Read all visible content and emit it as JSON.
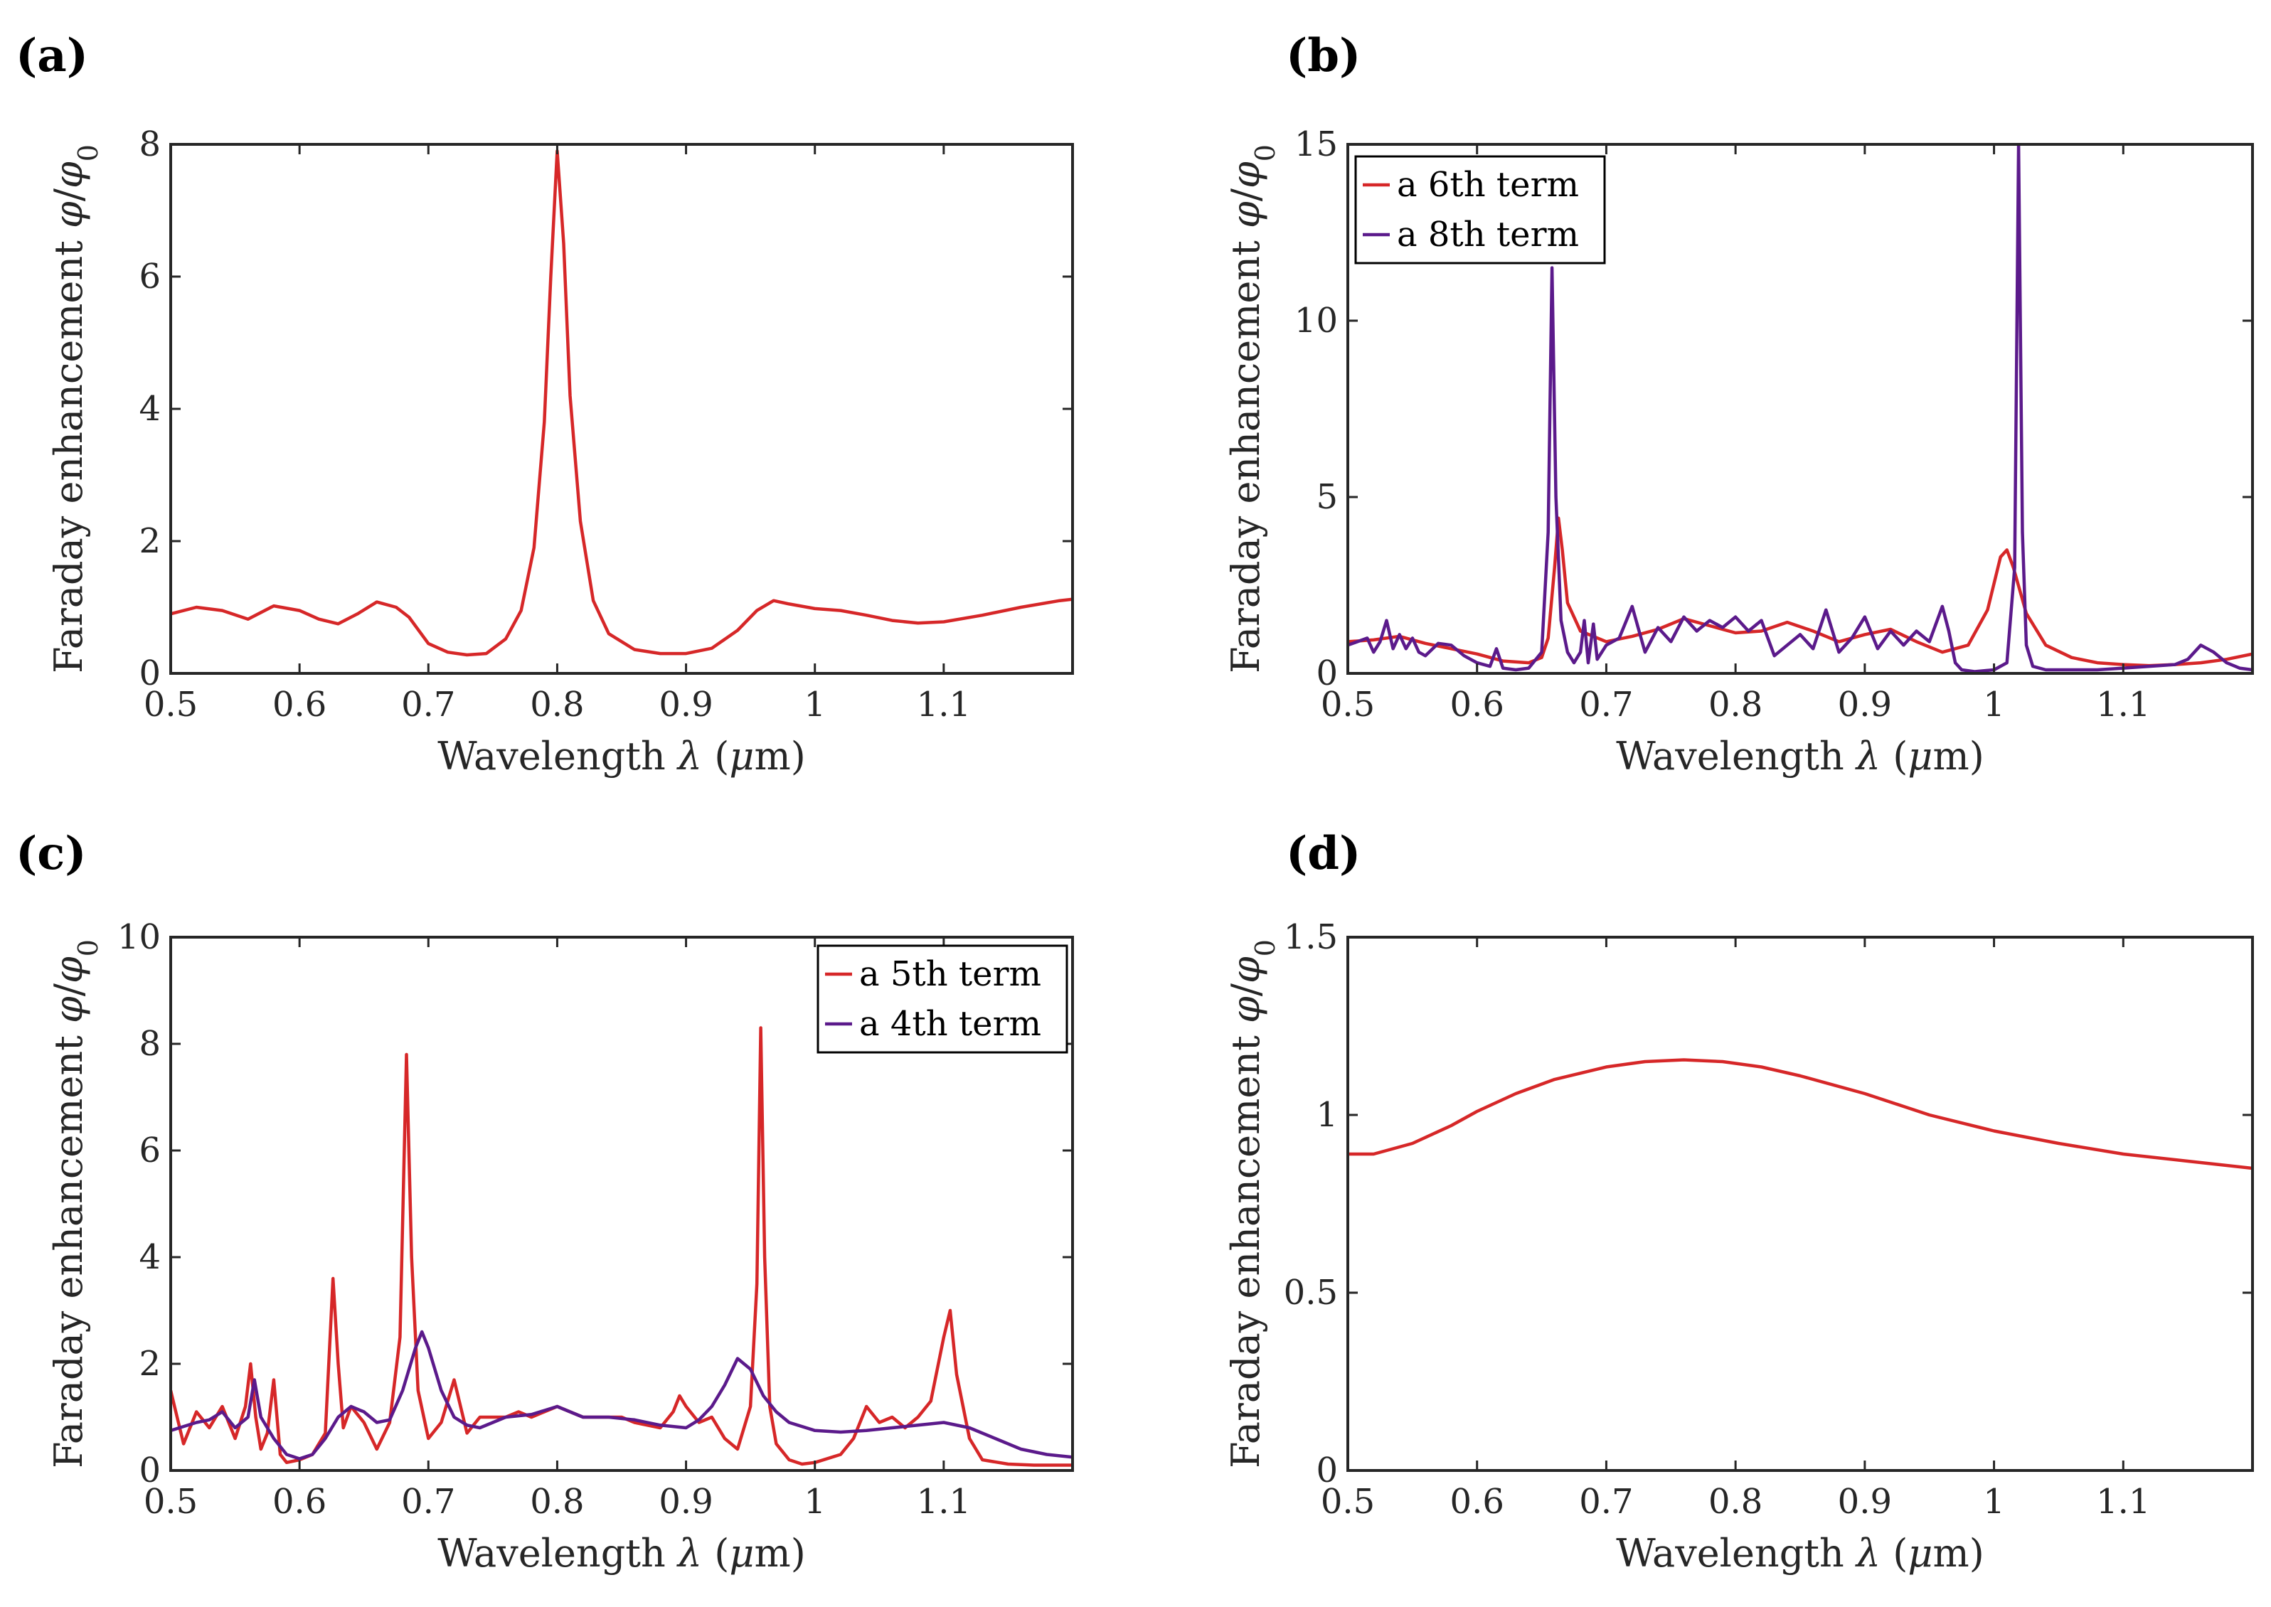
{
  "chart_data": [
    {
      "id": "a",
      "panel_label": "(a)",
      "type": "line",
      "xlabel": "Wavelength λ (μm)",
      "ylabel": "Faraday enhancement φ/φ0",
      "xlim": [
        0.5,
        1.2
      ],
      "ylim": [
        0,
        8
      ],
      "xticks": [
        0.5,
        0.6,
        0.7,
        0.8,
        0.9,
        1,
        1.1
      ],
      "xtick_labels": [
        "0.5",
        "0.6",
        "0.7",
        "0.8",
        "0.9",
        "1",
        "1.1"
      ],
      "yticks": [
        0,
        2,
        4,
        6,
        8
      ],
      "ytick_labels": [
        "0",
        "2",
        "4",
        "6",
        "8"
      ],
      "legend": [],
      "series": [
        {
          "name": "",
          "color": "#d62728",
          "x": [
            0.5,
            0.52,
            0.54,
            0.56,
            0.58,
            0.6,
            0.615,
            0.63,
            0.645,
            0.66,
            0.675,
            0.685,
            0.7,
            0.715,
            0.73,
            0.745,
            0.76,
            0.772,
            0.782,
            0.79,
            0.795,
            0.8,
            0.805,
            0.81,
            0.818,
            0.828,
            0.84,
            0.86,
            0.88,
            0.9,
            0.92,
            0.94,
            0.955,
            0.968,
            0.98,
            1.0,
            1.02,
            1.04,
            1.06,
            1.08,
            1.1,
            1.13,
            1.16,
            1.19,
            1.2
          ],
          "y": [
            0.9,
            1.0,
            0.95,
            0.82,
            1.02,
            0.95,
            0.82,
            0.75,
            0.9,
            1.08,
            1.0,
            0.85,
            0.45,
            0.32,
            0.28,
            0.3,
            0.52,
            0.95,
            1.9,
            3.8,
            6.0,
            7.9,
            6.5,
            4.2,
            2.3,
            1.1,
            0.6,
            0.36,
            0.3,
            0.3,
            0.38,
            0.65,
            0.95,
            1.1,
            1.05,
            0.98,
            0.95,
            0.88,
            0.8,
            0.76,
            0.78,
            0.88,
            1.0,
            1.1,
            1.12
          ]
        }
      ]
    },
    {
      "id": "b",
      "panel_label": "(b)",
      "type": "line",
      "xlabel": "Wavelength λ (μm)",
      "ylabel": "Faraday enhancement φ/φ0",
      "xlim": [
        0.5,
        1.2
      ],
      "ylim": [
        0,
        15
      ],
      "xticks": [
        0.5,
        0.6,
        0.7,
        0.8,
        0.9,
        1,
        1.1
      ],
      "xtick_labels": [
        "0.5",
        "0.6",
        "0.7",
        "0.8",
        "0.9",
        "1",
        "1.1"
      ],
      "yticks": [
        0,
        5,
        10,
        15
      ],
      "ytick_labels": [
        "0",
        "5",
        "10",
        "15"
      ],
      "legend": [
        "a 6th term",
        "a 8th term"
      ],
      "series": [
        {
          "name": "a 6th term",
          "color": "#d62728",
          "x": [
            0.5,
            0.52,
            0.54,
            0.56,
            0.58,
            0.6,
            0.62,
            0.64,
            0.65,
            0.655,
            0.66,
            0.663,
            0.666,
            0.67,
            0.68,
            0.7,
            0.72,
            0.74,
            0.76,
            0.78,
            0.8,
            0.82,
            0.84,
            0.86,
            0.88,
            0.9,
            0.92,
            0.94,
            0.96,
            0.98,
            0.995,
            1.005,
            1.01,
            1.015,
            1.025,
            1.04,
            1.06,
            1.08,
            1.1,
            1.12,
            1.14,
            1.16,
            1.18,
            1.2
          ],
          "y": [
            0.9,
            0.95,
            1.05,
            0.85,
            0.7,
            0.55,
            0.35,
            0.3,
            0.45,
            1.0,
            3.0,
            4.4,
            3.5,
            2.0,
            1.2,
            0.9,
            1.05,
            1.25,
            1.55,
            1.35,
            1.15,
            1.2,
            1.45,
            1.2,
            0.9,
            1.1,
            1.25,
            0.9,
            0.6,
            0.8,
            1.8,
            3.3,
            3.5,
            3.0,
            1.7,
            0.8,
            0.45,
            0.3,
            0.25,
            0.22,
            0.25,
            0.3,
            0.4,
            0.55
          ]
        },
        {
          "name": "a 8th term",
          "color": "#5b1a8b",
          "x": [
            0.5,
            0.515,
            0.52,
            0.525,
            0.53,
            0.535,
            0.54,
            0.545,
            0.55,
            0.555,
            0.56,
            0.57,
            0.58,
            0.59,
            0.6,
            0.61,
            0.615,
            0.62,
            0.63,
            0.64,
            0.65,
            0.655,
            0.658,
            0.661,
            0.665,
            0.67,
            0.675,
            0.68,
            0.683,
            0.686,
            0.69,
            0.693,
            0.7,
            0.71,
            0.72,
            0.73,
            0.74,
            0.75,
            0.76,
            0.77,
            0.78,
            0.79,
            0.8,
            0.81,
            0.82,
            0.83,
            0.84,
            0.85,
            0.86,
            0.87,
            0.88,
            0.89,
            0.9,
            0.91,
            0.92,
            0.93,
            0.94,
            0.95,
            0.96,
            0.965,
            0.97,
            0.975,
            0.985,
            1.0,
            1.01,
            1.016,
            1.019,
            1.022,
            1.025,
            1.03,
            1.04,
            1.06,
            1.08,
            1.1,
            1.12,
            1.14,
            1.15,
            1.16,
            1.17,
            1.18,
            1.19,
            1.2
          ],
          "y": [
            0.8,
            1.0,
            0.6,
            0.9,
            1.5,
            0.7,
            1.1,
            0.7,
            1.0,
            0.6,
            0.5,
            0.85,
            0.8,
            0.5,
            0.3,
            0.2,
            0.7,
            0.15,
            0.1,
            0.15,
            0.6,
            4.0,
            11.5,
            5.0,
            1.5,
            0.6,
            0.3,
            0.6,
            1.5,
            0.3,
            1.4,
            0.4,
            0.8,
            1.0,
            1.9,
            0.6,
            1.3,
            0.9,
            1.6,
            1.2,
            1.5,
            1.3,
            1.6,
            1.2,
            1.5,
            0.5,
            0.8,
            1.1,
            0.7,
            1.8,
            0.6,
            1.0,
            1.6,
            0.7,
            1.2,
            0.8,
            1.2,
            0.9,
            1.9,
            1.2,
            0.3,
            0.1,
            0.05,
            0.1,
            0.3,
            3.0,
            15.0,
            4.0,
            0.8,
            0.2,
            0.1,
            0.1,
            0.1,
            0.15,
            0.2,
            0.25,
            0.4,
            0.8,
            0.6,
            0.3,
            0.15,
            0.1
          ]
        }
      ]
    },
    {
      "id": "c",
      "panel_label": "(c)",
      "type": "line",
      "xlabel": "Wavelength λ (μm)",
      "ylabel": "Faraday enhancement φ/φ0",
      "xlim": [
        0.5,
        1.2
      ],
      "ylim": [
        0,
        10
      ],
      "xticks": [
        0.5,
        0.6,
        0.7,
        0.8,
        0.9,
        1,
        1.1
      ],
      "xtick_labels": [
        "0.5",
        "0.6",
        "0.7",
        "0.8",
        "0.9",
        "1",
        "1.1"
      ],
      "yticks": [
        0,
        2,
        4,
        6,
        8,
        10
      ],
      "ytick_labels": [
        "0",
        "2",
        "4",
        "6",
        "8",
        "10"
      ],
      "legend": [
        "a 5th term",
        "a 4th term"
      ],
      "series": [
        {
          "name": "a 5th term",
          "color": "#d62728",
          "x": [
            0.5,
            0.503,
            0.51,
            0.52,
            0.53,
            0.54,
            0.55,
            0.558,
            0.562,
            0.566,
            0.57,
            0.575,
            0.58,
            0.585,
            0.59,
            0.6,
            0.61,
            0.62,
            0.626,
            0.63,
            0.634,
            0.64,
            0.65,
            0.66,
            0.67,
            0.678,
            0.683,
            0.687,
            0.692,
            0.7,
            0.71,
            0.72,
            0.73,
            0.74,
            0.75,
            0.76,
            0.77,
            0.78,
            0.79,
            0.8,
            0.81,
            0.82,
            0.83,
            0.84,
            0.85,
            0.86,
            0.87,
            0.88,
            0.89,
            0.895,
            0.9,
            0.91,
            0.92,
            0.93,
            0.94,
            0.95,
            0.955,
            0.958,
            0.961,
            0.965,
            0.97,
            0.98,
            0.99,
            1.0,
            1.02,
            1.03,
            1.04,
            1.05,
            1.06,
            1.07,
            1.08,
            1.09,
            1.1,
            1.105,
            1.11,
            1.12,
            1.13,
            1.15,
            1.17,
            1.2
          ],
          "y": [
            1.5,
            1.2,
            0.5,
            1.1,
            0.8,
            1.2,
            0.6,
            1.2,
            2.0,
            1.0,
            0.4,
            0.7,
            1.7,
            0.3,
            0.15,
            0.2,
            0.3,
            0.7,
            3.6,
            2.0,
            0.8,
            1.2,
            0.9,
            0.4,
            0.9,
            2.5,
            7.8,
            4.0,
            1.5,
            0.6,
            0.9,
            1.7,
            0.7,
            1.0,
            1.0,
            1.0,
            1.1,
            1.0,
            1.1,
            1.2,
            1.1,
            1.0,
            1.0,
            1.0,
            1.0,
            0.9,
            0.85,
            0.8,
            1.1,
            1.4,
            1.2,
            0.9,
            1.0,
            0.6,
            0.4,
            1.2,
            3.5,
            8.3,
            4.0,
            1.2,
            0.5,
            0.2,
            0.12,
            0.15,
            0.3,
            0.6,
            1.2,
            0.9,
            1.0,
            0.8,
            1.0,
            1.3,
            2.5,
            3.0,
            1.8,
            0.6,
            0.2,
            0.12,
            0.1,
            0.1
          ]
        },
        {
          "name": "a 4th term",
          "color": "#5b1a8b",
          "x": [
            0.5,
            0.52,
            0.53,
            0.54,
            0.55,
            0.56,
            0.565,
            0.57,
            0.58,
            0.59,
            0.6,
            0.61,
            0.62,
            0.63,
            0.64,
            0.65,
            0.66,
            0.67,
            0.68,
            0.69,
            0.695,
            0.7,
            0.71,
            0.72,
            0.73,
            0.74,
            0.75,
            0.76,
            0.78,
            0.8,
            0.82,
            0.84,
            0.86,
            0.88,
            0.9,
            0.91,
            0.92,
            0.93,
            0.94,
            0.95,
            0.96,
            0.97,
            0.98,
            1.0,
            1.02,
            1.04,
            1.06,
            1.08,
            1.1,
            1.12,
            1.14,
            1.16,
            1.18,
            1.2
          ],
          "y": [
            0.75,
            0.9,
            0.95,
            1.1,
            0.8,
            1.0,
            1.7,
            1.0,
            0.6,
            0.3,
            0.22,
            0.3,
            0.6,
            1.0,
            1.2,
            1.1,
            0.9,
            0.95,
            1.5,
            2.3,
            2.6,
            2.3,
            1.5,
            1.0,
            0.85,
            0.8,
            0.9,
            1.0,
            1.05,
            1.2,
            1.0,
            1.0,
            0.95,
            0.85,
            0.8,
            0.95,
            1.2,
            1.6,
            2.1,
            1.9,
            1.4,
            1.1,
            0.9,
            0.75,
            0.72,
            0.75,
            0.8,
            0.85,
            0.9,
            0.8,
            0.6,
            0.4,
            0.3,
            0.25
          ]
        }
      ]
    },
    {
      "id": "d",
      "panel_label": "(d)",
      "type": "line",
      "xlabel": "Wavelength λ (μm)",
      "ylabel": "Faraday enhancement φ/φ0",
      "xlim": [
        0.5,
        1.2
      ],
      "ylim": [
        0,
        1.5
      ],
      "xticks": [
        0.5,
        0.6,
        0.7,
        0.8,
        0.9,
        1,
        1.1
      ],
      "xtick_labels": [
        "0.5",
        "0.6",
        "0.7",
        "0.8",
        "0.9",
        "1",
        "1.1"
      ],
      "yticks": [
        0,
        0.5,
        1,
        1.5
      ],
      "ytick_labels": [
        "0",
        "0.5",
        "1",
        "1.5"
      ],
      "legend": [],
      "series": [
        {
          "name": "",
          "color": "#d62728",
          "x": [
            0.5,
            0.52,
            0.55,
            0.58,
            0.6,
            0.63,
            0.66,
            0.7,
            0.73,
            0.76,
            0.79,
            0.82,
            0.85,
            0.9,
            0.95,
            1.0,
            1.05,
            1.1,
            1.15,
            1.2
          ],
          "y": [
            0.89,
            0.89,
            0.92,
            0.97,
            1.01,
            1.06,
            1.1,
            1.135,
            1.15,
            1.155,
            1.15,
            1.135,
            1.11,
            1.06,
            1.0,
            0.955,
            0.92,
            0.89,
            0.87,
            0.85
          ]
        }
      ]
    }
  ]
}
